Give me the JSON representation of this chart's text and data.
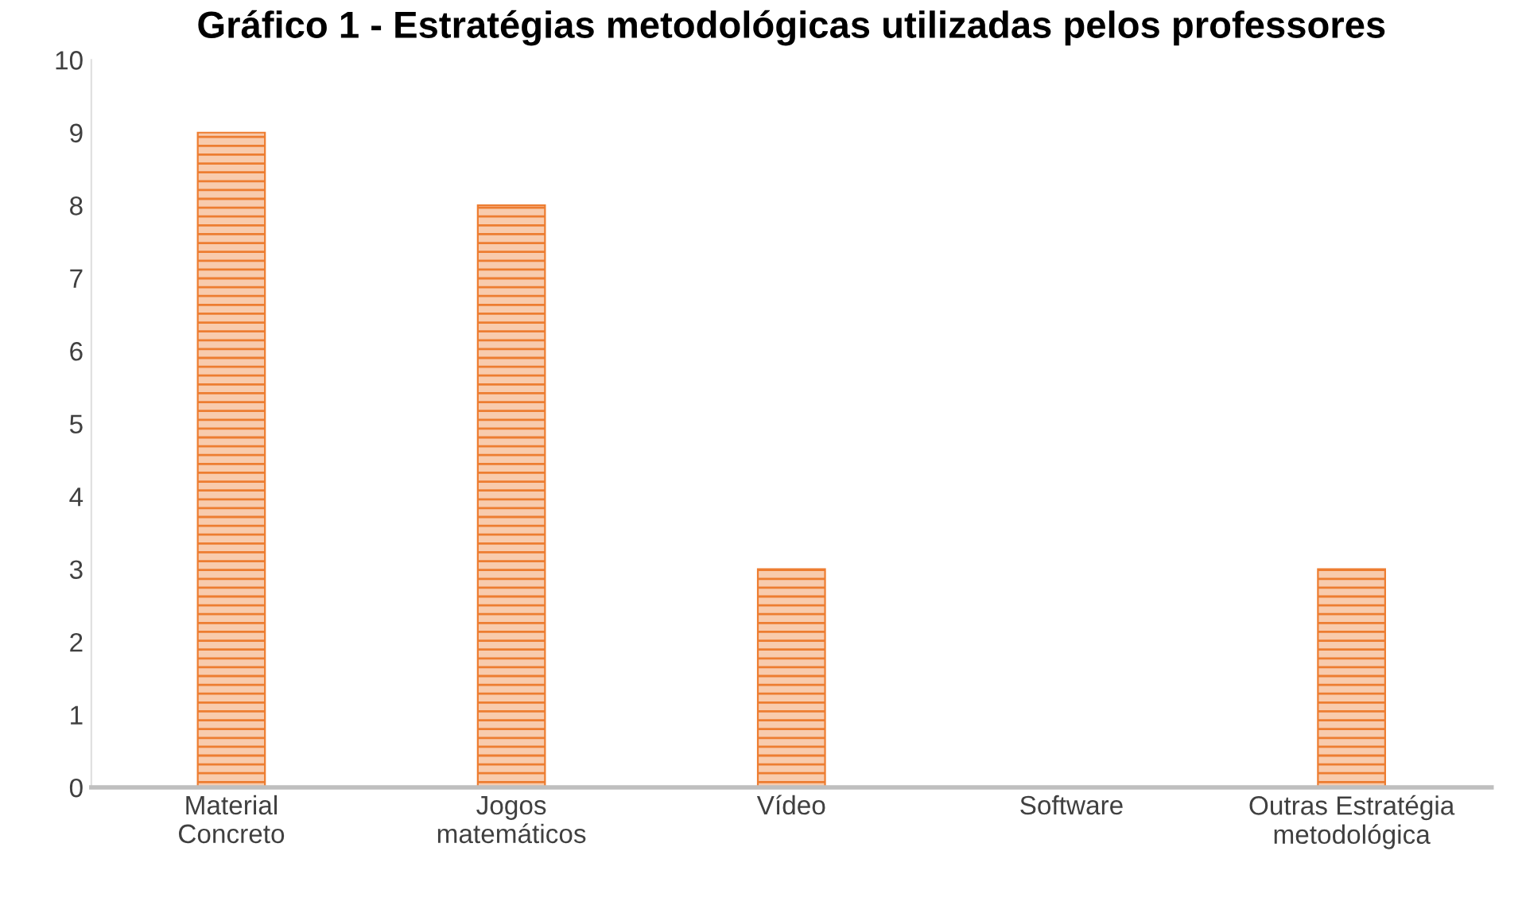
{
  "chart_data": {
    "type": "bar",
    "title": "Gráfico 1 - Estratégias metodológicas utilizadas pelos professores",
    "categories": [
      "Material\nConcreto",
      "Jogos\nmatemáticos",
      "Vídeo",
      "Software",
      "Outras Estratégia\nmetodológica"
    ],
    "values": [
      9,
      8,
      3,
      0,
      3
    ],
    "color": "#ed7d31",
    "ylim": [
      0,
      10
    ],
    "yticks": [
      0,
      1,
      2,
      3,
      4,
      5,
      6,
      7,
      8,
      9,
      10
    ],
    "grid": false,
    "legend": false
  }
}
